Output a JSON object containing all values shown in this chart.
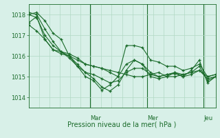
{
  "title": "Pression niveau de la mer( hPa )",
  "bg_color": "#d8f0e8",
  "grid_color": "#b0d8c4",
  "line_color": "#1a6b2a",
  "marker_color": "#1a6b2a",
  "ylim": [
    1013.5,
    1018.5
  ],
  "yticks": [
    1014,
    1015,
    1016,
    1017,
    1018
  ],
  "day_labels": [
    "Mar",
    "Mer",
    "Jeu"
  ],
  "day_positions": [
    0.33,
    0.635,
    0.935
  ],
  "series": [
    [
      1017.6,
      1017.9,
      1016.8,
      1016.3,
      1016.1,
      1016.0,
      1015.8,
      1015.6,
      1015.5,
      1015.4,
      1015.2,
      1015.0,
      1016.5,
      1016.5,
      1016.4,
      1015.8,
      1015.7,
      1015.5,
      1015.5,
      1015.3,
      1015.4,
      1015.6,
      1015.0,
      1015.1
    ],
    [
      1018.0,
      1018.1,
      1017.7,
      1017.1,
      1016.8,
      1016.0,
      1015.5,
      1015.0,
      1014.8,
      1014.35,
      1014.6,
      1015.0,
      1015.6,
      1015.8,
      1015.6,
      1015.2,
      1015.0,
      1015.1,
      1015.2,
      1015.0,
      1015.3,
      1015.8,
      1014.7,
      1015.0
    ],
    [
      1018.1,
      1018.0,
      1017.3,
      1016.7,
      1016.2,
      1015.9,
      1015.5,
      1015.2,
      1014.9,
      1014.5,
      1014.3,
      1014.6,
      1015.3,
      1015.8,
      1015.6,
      1015.0,
      1014.9,
      1015.0,
      1015.2,
      1015.1,
      1015.2,
      1015.5,
      1014.8,
      1015.0
    ],
    [
      1018.0,
      1017.85,
      1017.0,
      1016.5,
      1016.2,
      1016.0,
      1015.6,
      1015.2,
      1015.1,
      1014.9,
      1014.7,
      1014.8,
      1015.2,
      1015.4,
      1015.4,
      1015.1,
      1015.0,
      1015.1,
      1015.15,
      1015.0,
      1015.1,
      1015.3,
      1014.9,
      1015.0
    ],
    [
      1017.5,
      1017.2,
      1016.8,
      1016.3,
      1016.2,
      1016.1,
      1015.9,
      1015.6,
      1015.5,
      1015.4,
      1015.3,
      1015.2,
      1015.1,
      1015.0,
      1015.0,
      1015.1,
      1015.2,
      1015.0,
      1015.0,
      1015.1,
      1015.2,
      1015.3,
      1015.0,
      1015.1
    ]
  ]
}
